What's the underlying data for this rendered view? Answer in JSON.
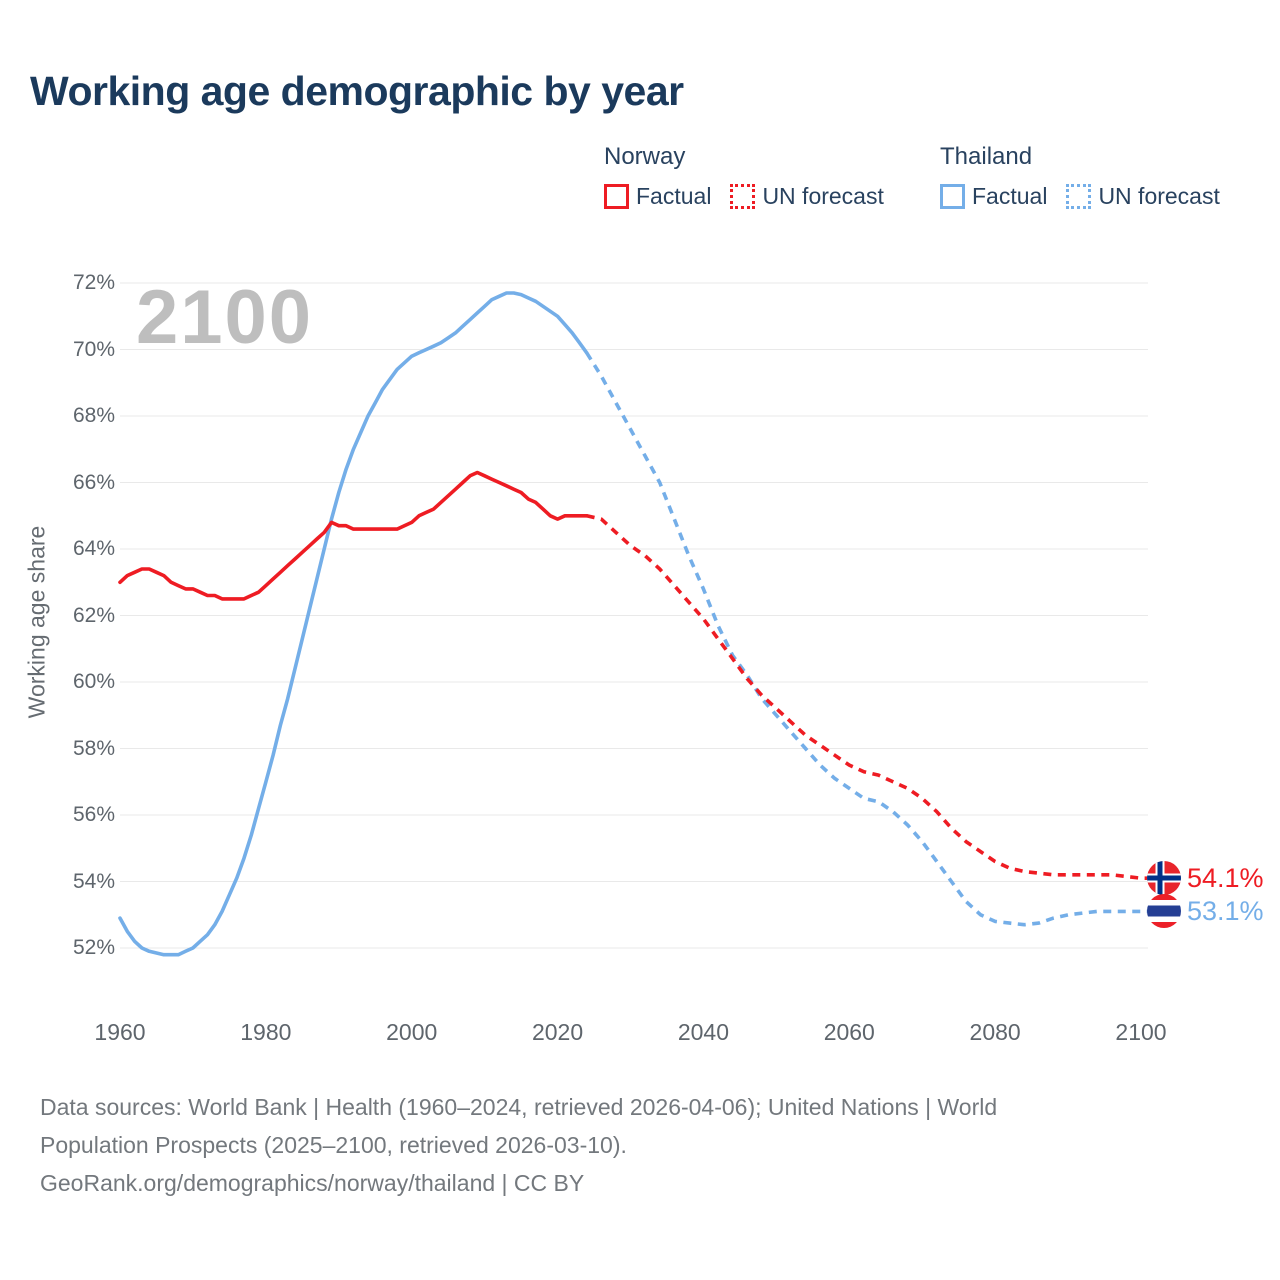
{
  "title": "Working age demographic by year",
  "watermark": "2100",
  "legend": {
    "groups": [
      {
        "country": "Norway",
        "items": [
          {
            "label": "Factual",
            "style": "solid",
            "color": "#ee1c23"
          },
          {
            "label": "UN forecast",
            "style": "dotted",
            "color": "#ee1c23"
          }
        ]
      },
      {
        "country": "Thailand",
        "items": [
          {
            "label": "Factual",
            "style": "solid",
            "color": "#74aee8"
          },
          {
            "label": "UN forecast",
            "style": "dotted",
            "color": "#74aee8"
          }
        ]
      }
    ]
  },
  "end_labels": [
    {
      "country": "Norway",
      "value": "54.1%",
      "color": "#ee1c23",
      "flag": "norway-flag"
    },
    {
      "country": "Thailand",
      "value": "53.1%",
      "color": "#74aee8",
      "flag": "thailand-flag"
    }
  ],
  "footer": {
    "lines": [
      "Data sources: World Bank | Health (1960–2024, retrieved 2026-04-06); United Nations | World",
      "Population Prospects (2025–2100, retrieved 2026-03-10).",
      "GeoRank.org/demographics/norway/thailand | CC BY"
    ]
  },
  "chart_data": {
    "type": "line",
    "title": "Working age demographic by year",
    "xlabel": "",
    "ylabel": "Working age share",
    "x_ticks": [
      1960,
      1980,
      2000,
      2020,
      2040,
      2060,
      2080,
      2100
    ],
    "y_ticks": [
      {
        "value": 72,
        "label": "72%"
      },
      {
        "value": 70,
        "label": "70%"
      },
      {
        "value": 68,
        "label": "68%"
      },
      {
        "value": 66,
        "label": "66%"
      },
      {
        "value": 64,
        "label": "64%"
      },
      {
        "value": 62,
        "label": "62%"
      },
      {
        "value": 60,
        "label": "60%"
      },
      {
        "value": 58,
        "label": "58%"
      },
      {
        "value": 56,
        "label": "56%"
      },
      {
        "value": 54,
        "label": "54%"
      },
      {
        "value": 52,
        "label": "52%"
      }
    ],
    "xlim": [
      1960,
      2100
    ],
    "ylim": [
      51.3,
      72.5
    ],
    "grid": "horizontal",
    "legend_position": "top-right",
    "series": [
      {
        "id": "thailand-factual-line",
        "name": "Thailand Factual",
        "color": "#74aee8",
        "dash": false,
        "extend_to_flag": false,
        "points": [
          [
            1960,
            52.9
          ],
          [
            1961,
            52.5
          ],
          [
            1962,
            52.2
          ],
          [
            1963,
            52.0
          ],
          [
            1964,
            51.9
          ],
          [
            1965,
            51.85
          ],
          [
            1966,
            51.8
          ],
          [
            1967,
            51.8
          ],
          [
            1968,
            51.8
          ],
          [
            1969,
            51.9
          ],
          [
            1970,
            52.0
          ],
          [
            1971,
            52.2
          ],
          [
            1972,
            52.4
          ],
          [
            1973,
            52.7
          ],
          [
            1974,
            53.1
          ],
          [
            1975,
            53.6
          ],
          [
            1976,
            54.1
          ],
          [
            1977,
            54.7
          ],
          [
            1978,
            55.4
          ],
          [
            1979,
            56.2
          ],
          [
            1980,
            57.0
          ],
          [
            1981,
            57.8
          ],
          [
            1982,
            58.7
          ],
          [
            1983,
            59.5
          ],
          [
            1984,
            60.4
          ],
          [
            1985,
            61.3
          ],
          [
            1986,
            62.2
          ],
          [
            1987,
            63.1
          ],
          [
            1988,
            64.0
          ],
          [
            1989,
            64.9
          ],
          [
            1990,
            65.7
          ],
          [
            1991,
            66.4
          ],
          [
            1992,
            67.0
          ],
          [
            1993,
            67.5
          ],
          [
            1994,
            68.0
          ],
          [
            1995,
            68.4
          ],
          [
            1996,
            68.8
          ],
          [
            1997,
            69.1
          ],
          [
            1998,
            69.4
          ],
          [
            1999,
            69.6
          ],
          [
            2000,
            69.8
          ],
          [
            2001,
            69.9
          ],
          [
            2002,
            70.0
          ],
          [
            2003,
            70.1
          ],
          [
            2004,
            70.2
          ],
          [
            2005,
            70.35
          ],
          [
            2006,
            70.5
          ],
          [
            2007,
            70.7
          ],
          [
            2008,
            70.9
          ],
          [
            2009,
            71.1
          ],
          [
            2010,
            71.3
          ],
          [
            2011,
            71.5
          ],
          [
            2012,
            71.6
          ],
          [
            2013,
            71.7
          ],
          [
            2014,
            71.7
          ],
          [
            2015,
            71.65
          ],
          [
            2016,
            71.55
          ],
          [
            2017,
            71.45
          ],
          [
            2018,
            71.3
          ],
          [
            2019,
            71.15
          ],
          [
            2020,
            71.0
          ],
          [
            2021,
            70.75
          ],
          [
            2022,
            70.5
          ],
          [
            2023,
            70.2
          ],
          [
            2024,
            69.9
          ]
        ]
      },
      {
        "id": "thailand-forecast-line",
        "name": "Thailand UN forecast",
        "color": "#74aee8",
        "dash": true,
        "extend_to_flag": true,
        "points": [
          [
            2024,
            69.9
          ],
          [
            2026,
            69.2
          ],
          [
            2028,
            68.4
          ],
          [
            2030,
            67.6
          ],
          [
            2032,
            66.8
          ],
          [
            2034,
            66.0
          ],
          [
            2036,
            64.9
          ],
          [
            2038,
            63.8
          ],
          [
            2040,
            62.8
          ],
          [
            2042,
            61.7
          ],
          [
            2044,
            60.8
          ],
          [
            2046,
            60.2
          ],
          [
            2048,
            59.5
          ],
          [
            2050,
            59.0
          ],
          [
            2052,
            58.5
          ],
          [
            2054,
            58.0
          ],
          [
            2056,
            57.5
          ],
          [
            2058,
            57.1
          ],
          [
            2060,
            56.8
          ],
          [
            2062,
            56.5
          ],
          [
            2064,
            56.4
          ],
          [
            2066,
            56.1
          ],
          [
            2068,
            55.7
          ],
          [
            2070,
            55.2
          ],
          [
            2072,
            54.6
          ],
          [
            2074,
            54.0
          ],
          [
            2076,
            53.4
          ],
          [
            2078,
            53.0
          ],
          [
            2080,
            52.8
          ],
          [
            2082,
            52.75
          ],
          [
            2084,
            52.7
          ],
          [
            2086,
            52.75
          ],
          [
            2088,
            52.9
          ],
          [
            2090,
            53.0
          ],
          [
            2092,
            53.05
          ],
          [
            2094,
            53.1
          ],
          [
            2096,
            53.1
          ],
          [
            2098,
            53.1
          ],
          [
            2100,
            53.1
          ]
        ]
      },
      {
        "id": "norway-factual-line",
        "name": "Norway Factual",
        "color": "#ee1c23",
        "dash": false,
        "extend_to_flag": false,
        "points": [
          [
            1960,
            63.0
          ],
          [
            1961,
            63.2
          ],
          [
            1962,
            63.3
          ],
          [
            1963,
            63.4
          ],
          [
            1964,
            63.4
          ],
          [
            1965,
            63.3
          ],
          [
            1966,
            63.2
          ],
          [
            1967,
            63.0
          ],
          [
            1968,
            62.9
          ],
          [
            1969,
            62.8
          ],
          [
            1970,
            62.8
          ],
          [
            1971,
            62.7
          ],
          [
            1972,
            62.6
          ],
          [
            1973,
            62.6
          ],
          [
            1974,
            62.5
          ],
          [
            1975,
            62.5
          ],
          [
            1976,
            62.5
          ],
          [
            1977,
            62.5
          ],
          [
            1978,
            62.6
          ],
          [
            1979,
            62.7
          ],
          [
            1980,
            62.9
          ],
          [
            1981,
            63.1
          ],
          [
            1982,
            63.3
          ],
          [
            1983,
            63.5
          ],
          [
            1984,
            63.7
          ],
          [
            1985,
            63.9
          ],
          [
            1986,
            64.1
          ],
          [
            1987,
            64.3
          ],
          [
            1988,
            64.5
          ],
          [
            1989,
            64.8
          ],
          [
            1990,
            64.7
          ],
          [
            1991,
            64.7
          ],
          [
            1992,
            64.6
          ],
          [
            1993,
            64.6
          ],
          [
            1994,
            64.6
          ],
          [
            1995,
            64.6
          ],
          [
            1996,
            64.6
          ],
          [
            1997,
            64.6
          ],
          [
            1998,
            64.6
          ],
          [
            1999,
            64.7
          ],
          [
            2000,
            64.8
          ],
          [
            2001,
            65.0
          ],
          [
            2002,
            65.1
          ],
          [
            2003,
            65.2
          ],
          [
            2004,
            65.4
          ],
          [
            2005,
            65.6
          ],
          [
            2006,
            65.8
          ],
          [
            2007,
            66.0
          ],
          [
            2008,
            66.2
          ],
          [
            2009,
            66.3
          ],
          [
            2010,
            66.2
          ],
          [
            2011,
            66.1
          ],
          [
            2012,
            66.0
          ],
          [
            2013,
            65.9
          ],
          [
            2014,
            65.8
          ],
          [
            2015,
            65.7
          ],
          [
            2016,
            65.5
          ],
          [
            2017,
            65.4
          ],
          [
            2018,
            65.2
          ],
          [
            2019,
            65.0
          ],
          [
            2020,
            64.9
          ],
          [
            2021,
            65.0
          ],
          [
            2022,
            65.0
          ],
          [
            2023,
            65.0
          ],
          [
            2024,
            65.0
          ]
        ]
      },
      {
        "id": "norway-forecast-line",
        "name": "Norway UN forecast",
        "color": "#ee1c23",
        "dash": true,
        "extend_to_flag": true,
        "points": [
          [
            2024,
            65.0
          ],
          [
            2026,
            64.9
          ],
          [
            2028,
            64.5
          ],
          [
            2030,
            64.1
          ],
          [
            2032,
            63.8
          ],
          [
            2034,
            63.4
          ],
          [
            2036,
            62.9
          ],
          [
            2038,
            62.4
          ],
          [
            2040,
            61.9
          ],
          [
            2042,
            61.3
          ],
          [
            2044,
            60.7
          ],
          [
            2046,
            60.1
          ],
          [
            2048,
            59.6
          ],
          [
            2050,
            59.2
          ],
          [
            2052,
            58.8
          ],
          [
            2054,
            58.4
          ],
          [
            2056,
            58.1
          ],
          [
            2058,
            57.8
          ],
          [
            2060,
            57.5
          ],
          [
            2062,
            57.3
          ],
          [
            2064,
            57.2
          ],
          [
            2066,
            57.0
          ],
          [
            2068,
            56.8
          ],
          [
            2070,
            56.5
          ],
          [
            2072,
            56.1
          ],
          [
            2074,
            55.6
          ],
          [
            2076,
            55.2
          ],
          [
            2078,
            54.9
          ],
          [
            2080,
            54.6
          ],
          [
            2082,
            54.4
          ],
          [
            2084,
            54.3
          ],
          [
            2086,
            54.25
          ],
          [
            2088,
            54.2
          ],
          [
            2090,
            54.2
          ],
          [
            2092,
            54.2
          ],
          [
            2094,
            54.2
          ],
          [
            2096,
            54.2
          ],
          [
            2098,
            54.15
          ],
          [
            2100,
            54.1
          ]
        ]
      }
    ]
  }
}
